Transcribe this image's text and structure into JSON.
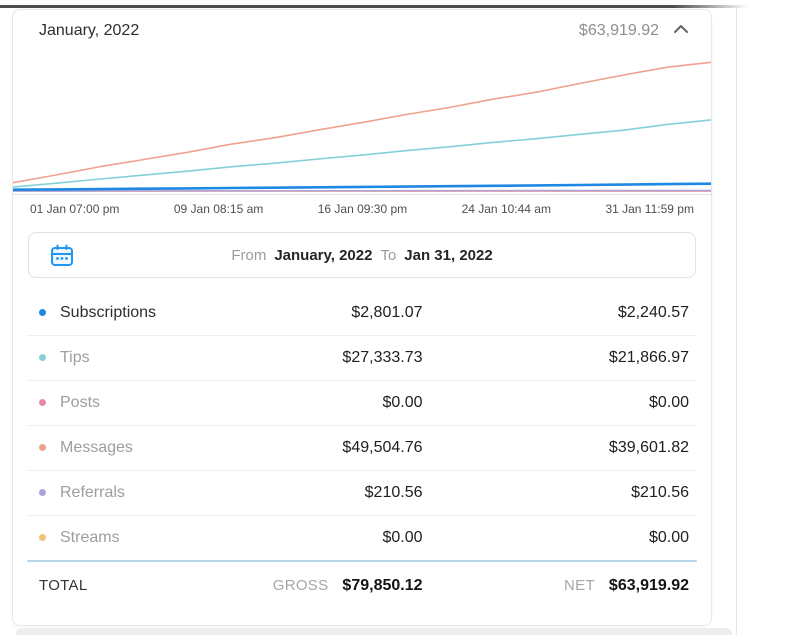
{
  "header": {
    "title": "January, 2022",
    "net_total": "$63,919.92"
  },
  "chart": {
    "chart_data": {
      "type": "line",
      "title": "Cumulative earnings for January, 2022 (USD)",
      "xlabel": "",
      "ylabel": "",
      "grid": false,
      "legend_position": "table-below",
      "ylim": [
        0,
        50000
      ],
      "x_tick_labels": [
        "01 Jan 07:00 pm",
        "09 Jan 08:15 am",
        "16 Jan 09:30 pm",
        "24 Jan 10:44 am",
        "31 Jan 11:59 pm"
      ],
      "series": [
        {
          "name": "Streams",
          "color": "#f2c279",
          "width": 1.4,
          "final_value": 0,
          "values": [
            0,
            0,
            0,
            0,
            0,
            0,
            0,
            0,
            0,
            0,
            0,
            0,
            0,
            0,
            0,
            0,
            0
          ]
        },
        {
          "name": "Posts",
          "color": "#e78ba4",
          "width": 1.4,
          "final_value": 0,
          "values": [
            0,
            0,
            0,
            0,
            0,
            0,
            0,
            0,
            0,
            0,
            0,
            0,
            0,
            0,
            0,
            0,
            0
          ]
        },
        {
          "name": "Referrals",
          "color": "#a9a3d9",
          "width": 1.4,
          "final_value": 210.56,
          "values": [
            0,
            15,
            30,
            45,
            60,
            75,
            90,
            105,
            120,
            135,
            150,
            160,
            175,
            185,
            195,
            205,
            210.56
          ]
        },
        {
          "name": "Messages",
          "color": "#efa18f",
          "width": 1.6,
          "final_value": 49504.76,
          "values": [
            3200,
            6200,
            9400,
            12100,
            14900,
            18000,
            20500,
            23500,
            26300,
            29400,
            32100,
            35300,
            38000,
            41400,
            44600,
            47600,
            49504.76
          ]
        },
        {
          "name": "Tips",
          "color": "#84d0d8",
          "width": 1.6,
          "final_value": 27333.73,
          "values": [
            1500,
            3000,
            4600,
            6100,
            7600,
            9300,
            10700,
            12300,
            13800,
            15500,
            17000,
            18700,
            20100,
            21800,
            23400,
            25600,
            27333.73
          ]
        },
        {
          "name": "Subscriptions",
          "color": "#1e88e5",
          "width": 2.6,
          "final_value": 2801.07,
          "values": [
            500,
            620,
            750,
            880,
            1010,
            1150,
            1280,
            1420,
            1560,
            1700,
            1840,
            1990,
            2140,
            2300,
            2470,
            2640,
            2801.07
          ]
        }
      ]
    }
  },
  "date_range": {
    "from_label": "From",
    "from_value": "January, 2022",
    "to_label": "To",
    "to_value": "Jan 31, 2022"
  },
  "rows": [
    {
      "label": "Subscriptions",
      "gross": "$2,801.07",
      "net": "$2,240.57",
      "color": "#1e88e5",
      "emphasis": true
    },
    {
      "label": "Tips",
      "gross": "$27,333.73",
      "net": "$21,866.97",
      "color": "#84d0d8",
      "emphasis": false
    },
    {
      "label": "Posts",
      "gross": "$0.00",
      "net": "$0.00",
      "color": "#e78ba4",
      "emphasis": false
    },
    {
      "label": "Messages",
      "gross": "$49,504.76",
      "net": "$39,601.82",
      "color": "#efa18f",
      "emphasis": false
    },
    {
      "label": "Referrals",
      "gross": "$210.56",
      "net": "$210.56",
      "color": "#a9a3d9",
      "emphasis": false
    },
    {
      "label": "Streams",
      "gross": "$0.00",
      "net": "$0.00",
      "color": "#f2c279",
      "emphasis": false
    }
  ],
  "total": {
    "label": "TOTAL",
    "gross_label": "GROSS",
    "gross_value": "$79,850.12",
    "net_label": "NET",
    "net_value": "$63,919.92"
  },
  "colors": {
    "accent_blue": "#1e88e5",
    "divider_blue": "#b5d5e8",
    "muted_text": "#9e9e9e"
  }
}
